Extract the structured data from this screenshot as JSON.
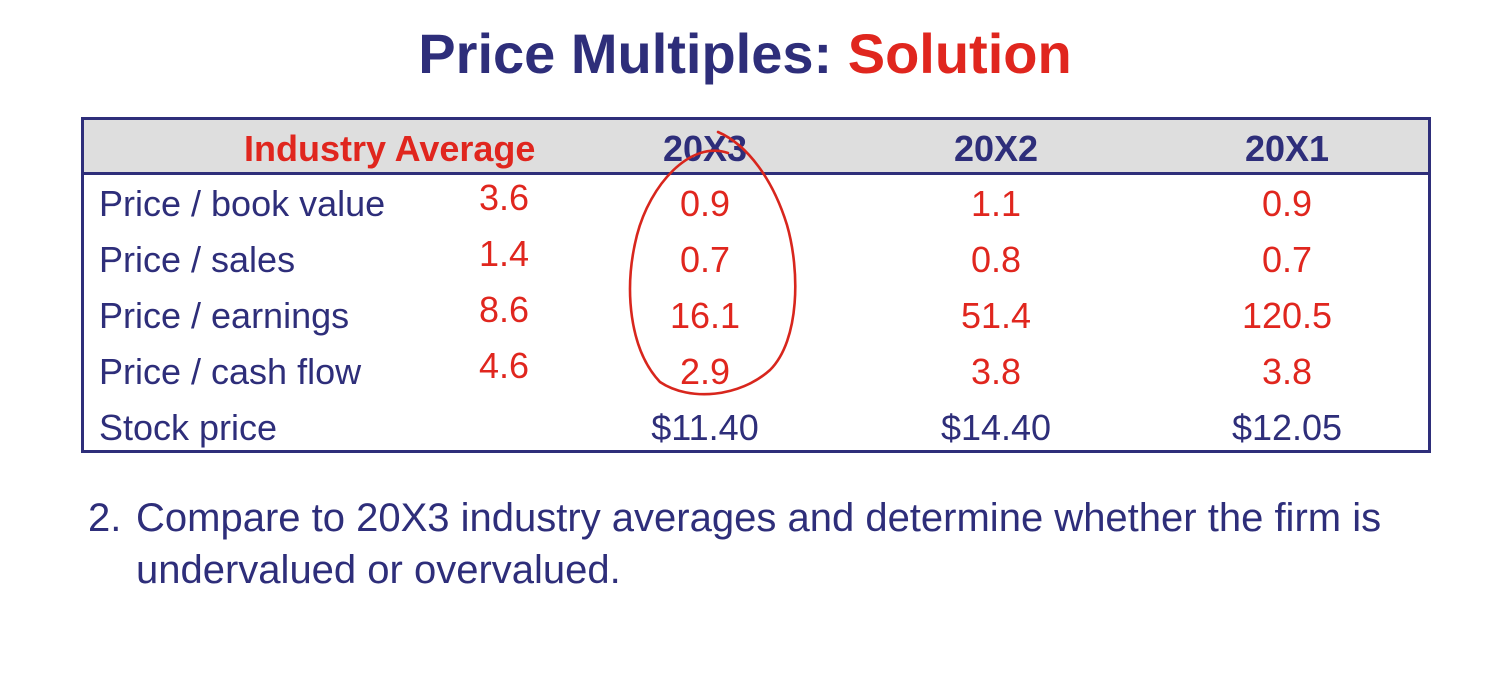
{
  "slide": {
    "title_main": "Price Multiples: ",
    "title_accent": "Solution"
  },
  "table": {
    "header": {
      "industry_label": "Industry Average",
      "years": [
        "20X3",
        "20X2",
        "20X1"
      ]
    },
    "rows": [
      {
        "label": "Price / book value",
        "industry_avg": "3.6",
        "values": [
          "0.9",
          "1.1",
          "0.9"
        ]
      },
      {
        "label": "Price / sales",
        "industry_avg": "1.4",
        "values": [
          "0.7",
          "0.8",
          "0.7"
        ]
      },
      {
        "label": "Price / earnings",
        "industry_avg": "8.6",
        "values": [
          "16.1",
          "51.4",
          "120.5"
        ]
      },
      {
        "label": "Price / cash flow",
        "industry_avg": "4.6",
        "values": [
          "2.9",
          "3.8",
          "3.8"
        ]
      },
      {
        "label": "Stock price",
        "industry_avg": "",
        "values": [
          "$11.40",
          "$14.40",
          "$12.05"
        ]
      }
    ]
  },
  "note": {
    "number": "2.",
    "text": "Compare to 20X3 industry averages and determine whether the firm is undervalued or overvalued."
  },
  "colors": {
    "navy": "#2e2e7a",
    "red": "#e0261e",
    "header_bg": "#dedede"
  }
}
